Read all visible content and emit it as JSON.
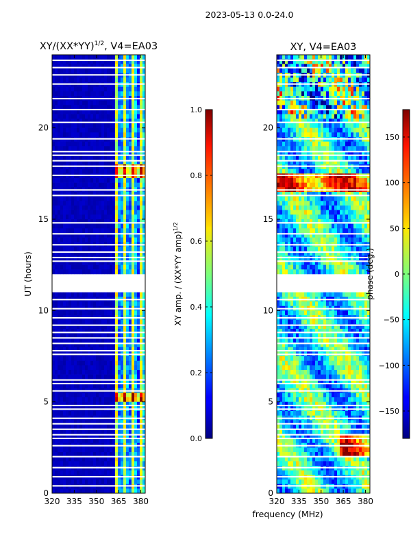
{
  "suptitle": "2023-05-13 0.0-24.0",
  "shared": {
    "ylabel": "UT (hours)",
    "xlabel": "frequency (MHz)",
    "xlim": [
      320,
      383
    ],
    "ylim": [
      0,
      24
    ]
  },
  "chart_data": [
    {
      "type": "heatmap",
      "title": "XY/(XX*YY)",
      "title_exp": "1/2",
      "title_tail": ", V4=EA03",
      "x_ticks": [
        320,
        335,
        350,
        365,
        380
      ],
      "y_ticks": [
        0,
        5,
        10,
        15,
        20
      ],
      "colorbar": {
        "label": "XY amp. / (XX*YY amp)",
        "label_exp": "1/2",
        "range": [
          0.0,
          1.0
        ],
        "ticks": [
          "0.0",
          "0.2",
          "0.4",
          "0.6",
          "0.8",
          "1.0"
        ],
        "tick_values": [
          0.0,
          0.2,
          0.4,
          0.6,
          0.8,
          1.0
        ],
        "colormap": "jet"
      },
      "data_gap_hours": [
        11.0,
        12.0
      ],
      "note": "low amplitude (~0.05) below 362 MHz; elevated amplitude (~0.3-0.8) in channel bands between 362 and 382 MHz"
    },
    {
      "type": "heatmap",
      "title": "XY, V4=EA03",
      "x_ticks": [
        320,
        335,
        350,
        365,
        380
      ],
      "y_ticks": [
        0,
        5,
        10,
        15,
        20
      ],
      "colorbar": {
        "label": "phase (deg.)",
        "range": [
          -180,
          180
        ],
        "ticks": [
          "−150",
          "−100",
          "−50",
          "0",
          "50",
          "100",
          "150"
        ],
        "tick_values": [
          -150,
          -100,
          -50,
          0,
          50,
          100,
          150
        ],
        "colormap": "jet"
      },
      "data_gap_hours": [
        11.0,
        12.0
      ],
      "note": "phase varies broadly across full range; mostly around -50 to 0 deg with red patches near 17 h and 2-3 h"
    }
  ]
}
